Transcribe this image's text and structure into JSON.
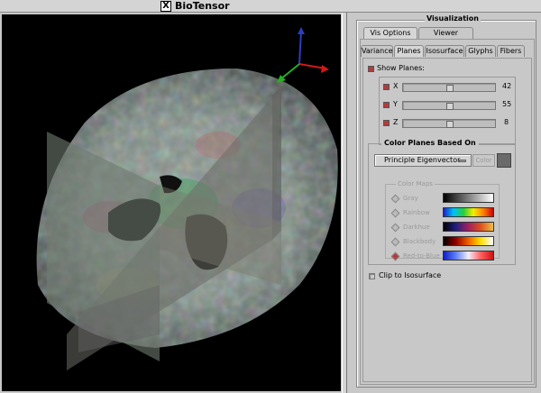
{
  "window": {
    "title": "BioTensor"
  },
  "visualization": {
    "title": "Visualization",
    "outer_tabs": [
      "Vis Options",
      "Viewer Options"
    ],
    "inner_tabs": [
      "Variance",
      "Planes",
      "Isosurface",
      "Glyphs",
      "Fibers"
    ],
    "show_planes": {
      "label": "Show Planes:",
      "checked": true
    },
    "planes": [
      {
        "axis": "X",
        "value": "42",
        "checked": true,
        "fraction": 0.5
      },
      {
        "axis": "Y",
        "value": "55",
        "checked": true,
        "fraction": 0.5
      },
      {
        "axis": "Z",
        "value": "8",
        "checked": true,
        "fraction": 0.5
      }
    ],
    "color_planes": {
      "title": "Color Planes Based On",
      "selected": "Principle Eigenvector",
      "color_button": "Color",
      "swatch_color": "#6a6a6a"
    },
    "color_maps": {
      "title": "Color Maps",
      "items": [
        "Gray",
        "Rainbow",
        "Darkhue",
        "Blackbody",
        "Red-to-Blue"
      ],
      "selected": "Red-to-Blue"
    },
    "clip": {
      "label": "Clip to Isosurface",
      "checked": false
    }
  },
  "colors": {
    "accent": "#b23c3c",
    "panel_bg": "#c8c8c8",
    "viewer_bg": "#000000"
  }
}
